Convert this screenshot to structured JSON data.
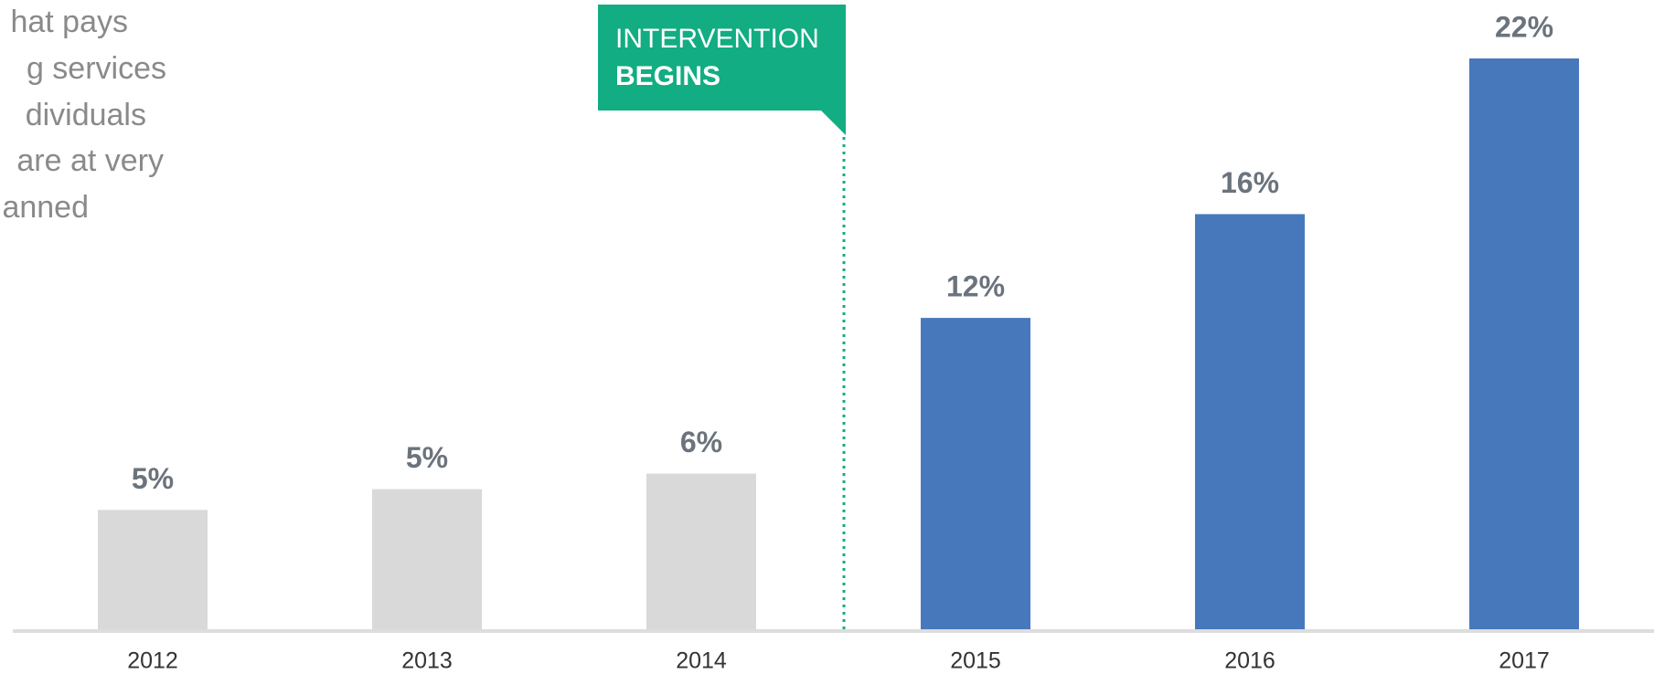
{
  "chart_data": {
    "type": "bar",
    "description_lines": [
      "hat pays",
      "g services",
      "dividuals",
      "are at very",
      "anned"
    ],
    "annotation": {
      "text": "INTERVENTION",
      "emphasis": "BEGINS"
    },
    "categories": [
      "2012",
      "2013",
      "2014",
      "2015",
      "2016",
      "2017"
    ],
    "values": [
      4.6,
      5.4,
      6,
      12,
      16,
      22
    ],
    "value_labels": [
      "5%",
      "5%",
      "6%",
      "12%",
      "16%",
      "22%"
    ],
    "colors": [
      "#d9d9d9",
      "#d9d9d9",
      "#d9d9d9",
      "#4878bc",
      "#4878bc",
      "#4878bc"
    ],
    "ylim": [
      0,
      22
    ]
  }
}
